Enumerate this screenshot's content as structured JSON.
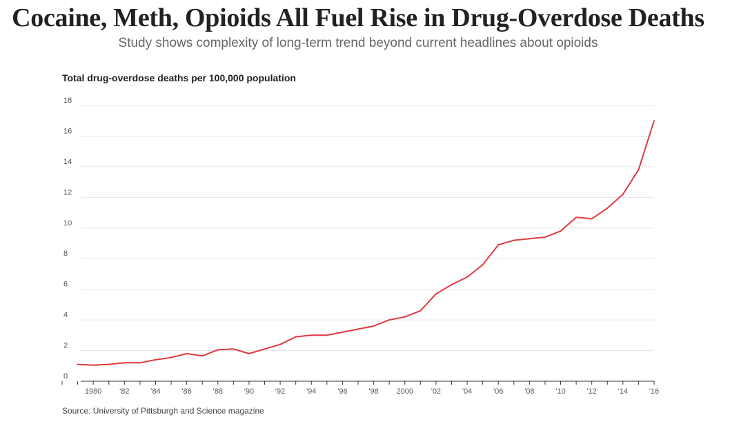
{
  "title": "Cocaine, Meth, Opioids All Fuel Rise in Drug-Overdose Deaths",
  "subtitle": "Study shows complexity of long-term trend beyond current headlines about opioids",
  "source": "Source: University of Pittsburgh and Science magazine",
  "colors": {
    "line": "#e0393e",
    "grid": "#e6e6e6",
    "axis": "#333333"
  },
  "chart_data": {
    "type": "line",
    "ylabel": "Total drug-overdose deaths per 100,000 population",
    "xlabel": "",
    "ylim": [
      0,
      18
    ],
    "xlim": [
      1978,
      2016
    ],
    "grid": true,
    "y_ticks": [
      0,
      2,
      4,
      6,
      8,
      10,
      12,
      14,
      16,
      18
    ],
    "y_tick_labels": [
      "0",
      "2",
      "4",
      "6",
      "8",
      "10",
      "12",
      "14",
      "16",
      "18"
    ],
    "x_ticks": [
      1980,
      1982,
      1984,
      1986,
      1988,
      1990,
      1992,
      1994,
      1996,
      1998,
      2000,
      2002,
      2004,
      2006,
      2008,
      2010,
      2012,
      2014,
      2016
    ],
    "x_tick_labels": [
      "1980",
      "'82",
      "'84",
      "'86",
      "'88",
      "'90",
      "'92",
      "'94",
      "'96",
      "'98",
      "2000",
      "'02",
      "'04",
      "'06",
      "'08",
      "'10",
      "'12",
      "'14",
      "'16"
    ],
    "series": [
      {
        "x": [
          1979,
          1980,
          1981,
          1982,
          1983,
          1984,
          1985,
          1986,
          1987,
          1988,
          1989,
          1990,
          1991,
          1992,
          1993,
          1994,
          1995,
          1996,
          1997,
          1998,
          1999,
          2000,
          2001,
          2002,
          2003,
          2004,
          2005,
          2006,
          2007,
          2008,
          2009,
          2010,
          2011,
          2012,
          2013,
          2014,
          2015,
          2016
        ],
        "values": [
          1.1,
          1.05,
          1.1,
          1.2,
          1.2,
          1.4,
          1.55,
          1.8,
          1.65,
          2.05,
          2.1,
          1.8,
          2.1,
          2.4,
          2.9,
          3.0,
          3.0,
          3.2,
          3.4,
          3.6,
          4.0,
          4.2,
          4.6,
          5.7,
          6.3,
          6.8,
          7.6,
          8.9,
          9.2,
          9.3,
          9.4,
          9.8,
          10.7,
          10.6,
          11.3,
          12.2,
          13.8,
          17.0
        ]
      }
    ]
  }
}
